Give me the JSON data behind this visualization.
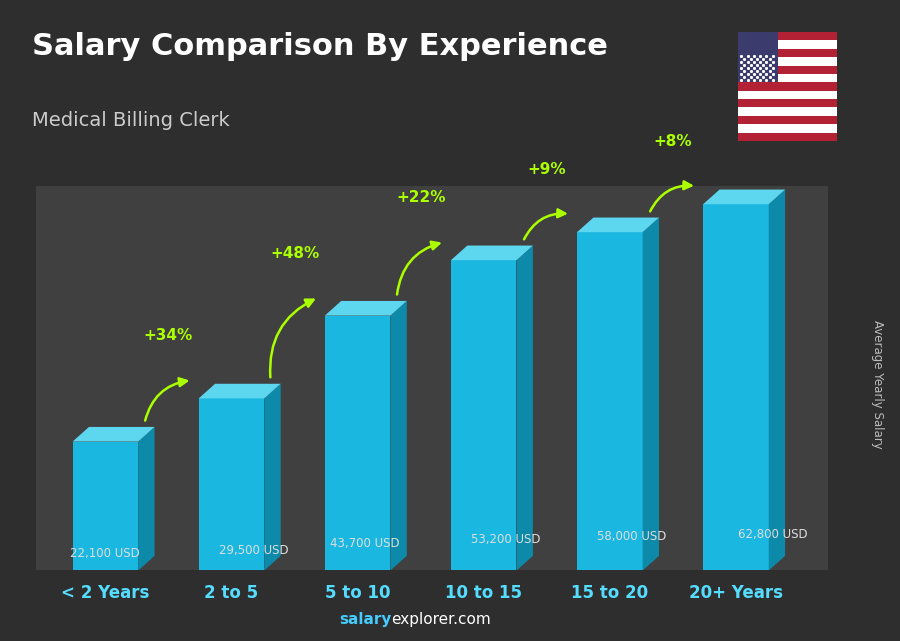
{
  "title": "Salary Comparison By Experience",
  "subtitle": "Medical Billing Clerk",
  "ylabel": "Average Yearly Salary",
  "categories": [
    "< 2 Years",
    "2 to 5",
    "5 to 10",
    "10 to 15",
    "15 to 20",
    "20+ Years"
  ],
  "values": [
    22100,
    29500,
    43700,
    53200,
    58000,
    62800
  ],
  "value_labels": [
    "22,100 USD",
    "29,500 USD",
    "43,700 USD",
    "53,200 USD",
    "58,000 USD",
    "62,800 USD"
  ],
  "pct_changes": [
    "+34%",
    "+48%",
    "+22%",
    "+9%",
    "+8%"
  ],
  "bar_color_front": "#1ab8e0",
  "bar_color_side": "#0d8aaa",
  "bar_color_top": "#5dd6f0",
  "background_color": "#2e2e2e",
  "title_color": "#ffffff",
  "subtitle_color": "#cccccc",
  "pct_color": "#aaff00",
  "arrow_color": "#aaff00",
  "tick_color": "#55ddff",
  "salary_label_color": "#dddddd",
  "watermark_bold": "salary",
  "watermark_normal": "explorer.com",
  "watermark_color_bold": "#44ccff",
  "watermark_color_normal": "#ffffff",
  "ylabel_color": "#bbbbbb"
}
